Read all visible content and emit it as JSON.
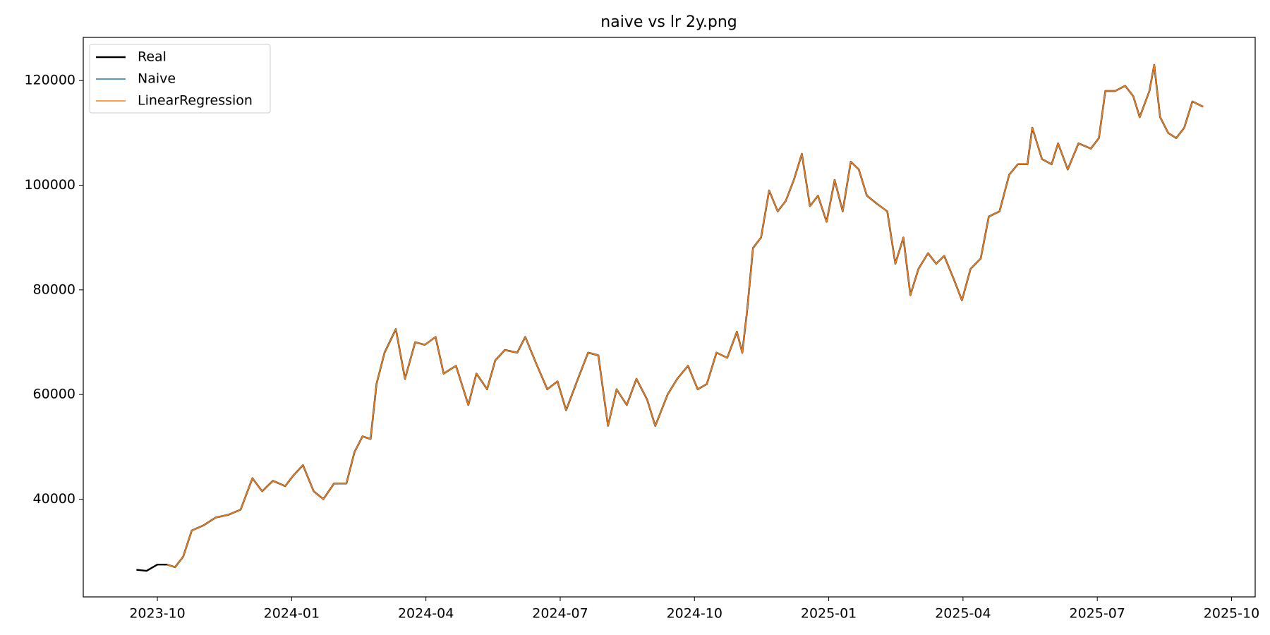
{
  "chart_data": {
    "type": "line",
    "title": "naive vs lr 2y.png",
    "x": [
      2023.711,
      2023.73,
      2023.75,
      2023.768,
      2023.783,
      2023.798,
      2023.814,
      2023.836,
      2023.859,
      2023.882,
      2023.905,
      2023.927,
      2023.945,
      2023.965,
      2023.988,
      2024.003,
      2024.021,
      2024.041,
      2024.059,
      2024.079,
      2024.102,
      2024.117,
      2024.132,
      2024.147,
      2024.158,
      2024.173,
      2024.194,
      2024.211,
      2024.23,
      2024.248,
      2024.268,
      2024.283,
      2024.306,
      2024.329,
      2024.344,
      2024.364,
      2024.379,
      2024.397,
      2024.42,
      2024.435,
      2024.455,
      2024.476,
      2024.495,
      2024.511,
      2024.533,
      2024.552,
      2024.571,
      2024.589,
      2024.605,
      2024.624,
      2024.642,
      2024.662,
      2024.677,
      2024.7,
      2024.718,
      2024.738,
      2024.756,
      2024.773,
      2024.791,
      2024.811,
      2024.829,
      2024.839,
      2024.848,
      2024.859,
      2024.874,
      2024.889,
      2024.905,
      2024.92,
      2024.935,
      2024.95,
      2024.965,
      2024.98,
      2024.996,
      2025.011,
      2025.026,
      2025.041,
      2025.056,
      2025.071,
      2025.089,
      2025.109,
      2025.124,
      2025.139,
      2025.152,
      2025.167,
      2025.185,
      2025.2,
      2025.215,
      2025.233,
      2025.248,
      2025.264,
      2025.283,
      2025.298,
      2025.318,
      2025.336,
      2025.352,
      2025.37,
      2025.379,
      2025.397,
      2025.415,
      2025.427,
      2025.445,
      2025.465,
      2025.488,
      2025.503,
      2025.515,
      2025.533,
      2025.552,
      2025.567,
      2025.579,
      2025.597,
      2025.606,
      2025.617,
      2025.632,
      2025.647,
      2025.662,
      2025.677,
      2025.697
    ],
    "series": [
      {
        "name": "Real",
        "color": "#000000",
        "values": [
          26500,
          26300,
          27500,
          27500,
          27000,
          29000,
          34000,
          35000,
          36500,
          37000,
          38000,
          44000,
          41500,
          43500,
          42500,
          44500,
          46500,
          41500,
          40000,
          43000,
          43000,
          49000,
          52000,
          51500,
          62000,
          68000,
          72500,
          63000,
          70000,
          69500,
          71000,
          64000,
          65500,
          58000,
          64000,
          61000,
          66500,
          68500,
          68000,
          71000,
          66000,
          61000,
          62500,
          57000,
          63000,
          68000,
          67500,
          54000,
          61000,
          58000,
          63000,
          59000,
          54000,
          60000,
          63000,
          65500,
          61000,
          62000,
          68000,
          67000,
          72000,
          68000,
          76000,
          88000,
          90000,
          99000,
          95000,
          97000,
          101000,
          106000,
          96000,
          98000,
          93000,
          101000,
          95000,
          104500,
          103000,
          98000,
          96500,
          95000,
          85000,
          90000,
          79000,
          84000,
          87000,
          85000,
          86500,
          82000,
          78000,
          84000,
          86000,
          94000,
          95000,
          102000,
          104000,
          104000,
          111000,
          105000,
          104000,
          108000,
          103000,
          108000,
          107000,
          109000,
          118000,
          118000,
          119000,
          117000,
          113000,
          118000,
          123000,
          113000,
          110000,
          109000,
          111000,
          116000,
          115000
        ]
      },
      {
        "name": "Naive",
        "color": "#1f77b4",
        "values": [
          null,
          null,
          null,
          27500,
          27000,
          29000,
          34000,
          35000,
          36500,
          37000,
          38000,
          44000,
          41500,
          43500,
          42500,
          44500,
          46500,
          41500,
          40000,
          43000,
          43000,
          49000,
          52000,
          51500,
          62000,
          68000,
          72500,
          63000,
          70000,
          69500,
          71000,
          64000,
          65500,
          58000,
          64000,
          61000,
          66500,
          68500,
          68000,
          71000,
          66000,
          61000,
          62500,
          57000,
          63000,
          68000,
          67500,
          54000,
          61000,
          58000,
          63000,
          59000,
          54000,
          60000,
          63000,
          65500,
          61000,
          62000,
          68000,
          67000,
          72000,
          68000,
          76000,
          88000,
          90000,
          99000,
          95000,
          97000,
          101000,
          106000,
          96000,
          98000,
          93000,
          101000,
          95000,
          104500,
          103000,
          98000,
          96500,
          95000,
          85000,
          90000,
          79000,
          84000,
          87000,
          85000,
          86500,
          82000,
          78000,
          84000,
          86000,
          94000,
          95000,
          102000,
          104000,
          104000,
          111000,
          105000,
          104000,
          108000,
          103000,
          108000,
          107000,
          109000,
          118000,
          118000,
          119000,
          117000,
          113000,
          118000,
          123000,
          113000,
          110000,
          109000,
          111000,
          116000,
          115000
        ]
      },
      {
        "name": "LinearRegression",
        "color": "#ff7f0e",
        "values": [
          null,
          null,
          null,
          27500,
          27000,
          29000,
          34000,
          35000,
          36500,
          37000,
          38000,
          44000,
          41500,
          43500,
          42500,
          44500,
          46500,
          41500,
          40000,
          43000,
          43000,
          49000,
          52000,
          51500,
          62000,
          68000,
          72500,
          63000,
          70000,
          69500,
          71000,
          64000,
          65500,
          58000,
          64000,
          61000,
          66500,
          68500,
          68000,
          71000,
          66000,
          61000,
          62500,
          57000,
          63000,
          68000,
          67500,
          54000,
          61000,
          58000,
          63000,
          59000,
          54000,
          60000,
          63000,
          65500,
          61000,
          62000,
          68000,
          67000,
          72000,
          68000,
          76000,
          88000,
          90000,
          99000,
          95000,
          97000,
          101000,
          106000,
          96000,
          98000,
          93000,
          101000,
          95000,
          104500,
          103000,
          98000,
          96500,
          95000,
          85000,
          90000,
          79000,
          84000,
          87000,
          85000,
          86500,
          82000,
          78000,
          84000,
          86000,
          94000,
          95000,
          102000,
          104000,
          104000,
          111000,
          105000,
          104000,
          108000,
          103000,
          108000,
          107000,
          109000,
          118000,
          118000,
          119000,
          117000,
          113000,
          118000,
          123000,
          113000,
          110000,
          109000,
          111000,
          116000,
          115000
        ]
      }
    ],
    "xlim": [
      2023.612,
      2025.794
    ],
    "xticks": [
      {
        "value": 2023.75,
        "label": "2023-10"
      },
      {
        "value": 2024.0,
        "label": "2024-01"
      },
      {
        "value": 2024.25,
        "label": "2024-04"
      },
      {
        "value": 2024.5,
        "label": "2024-07"
      },
      {
        "value": 2024.75,
        "label": "2024-10"
      },
      {
        "value": 2025.0,
        "label": "2025-01"
      },
      {
        "value": 2025.25,
        "label": "2025-04"
      },
      {
        "value": 2025.5,
        "label": "2025-07"
      },
      {
        "value": 2025.75,
        "label": "2025-10"
      }
    ],
    "ylim": [
      21320,
      128250
    ],
    "yticks": [
      40000,
      60000,
      80000,
      100000,
      120000
    ],
    "grid": false,
    "legend": "upper left"
  }
}
